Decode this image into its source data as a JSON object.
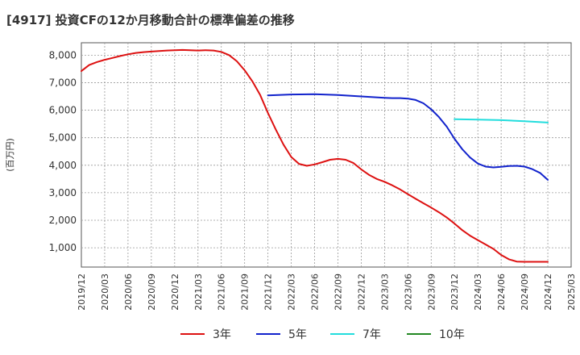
{
  "chart_data": {
    "type": "line",
    "title": "[4917]  投資CFの12か月移動合計の標準偏差の推移",
    "ylabel": "(百万円)",
    "xlabel": "",
    "ylim": [
      300,
      8450
    ],
    "xlim": [
      "2019-12",
      "2025-03"
    ],
    "y_ticks": [
      1000,
      2000,
      3000,
      4000,
      5000,
      6000,
      7000,
      8000
    ],
    "y_tick_labels": [
      "1,000",
      "2,000",
      "3,000",
      "4,000",
      "5,000",
      "6,000",
      "7,000",
      "8,000"
    ],
    "x_tick_labels": [
      "2019/12",
      "2020/03",
      "2020/06",
      "2020/09",
      "2020/12",
      "2021/03",
      "2021/06",
      "2021/09",
      "2021/12",
      "2022/03",
      "2022/06",
      "2022/09",
      "2022/12",
      "2023/03",
      "2023/06",
      "2023/09",
      "2023/12",
      "2024/03",
      "2024/06",
      "2024/09",
      "2024/12",
      "2025/03"
    ],
    "grid": true,
    "legend_position": "bottom",
    "series": [
      {
        "name": "3年",
        "color": "#dd1111",
        "x": [
          "2019-12",
          "2020-01",
          "2020-02",
          "2020-03",
          "2020-04",
          "2020-05",
          "2020-06",
          "2020-07",
          "2020-08",
          "2020-09",
          "2020-10",
          "2020-11",
          "2020-12",
          "2021-01",
          "2021-02",
          "2021-03",
          "2021-04",
          "2021-05",
          "2021-06",
          "2021-07",
          "2021-08",
          "2021-09",
          "2021-10",
          "2021-11",
          "2021-12",
          "2022-01",
          "2022-02",
          "2022-03",
          "2022-04",
          "2022-05",
          "2022-06",
          "2022-07",
          "2022-08",
          "2022-09",
          "2022-10",
          "2022-11",
          "2022-12",
          "2023-01",
          "2023-02",
          "2023-03",
          "2023-04",
          "2023-05",
          "2023-06",
          "2023-07",
          "2023-08",
          "2023-09",
          "2023-10",
          "2023-11",
          "2023-12",
          "2024-01",
          "2024-02",
          "2024-03",
          "2024-04",
          "2024-05",
          "2024-06",
          "2024-07",
          "2024-08",
          "2024-09",
          "2024-10",
          "2024-11",
          "2024-12"
        ],
        "values": [
          7420,
          7640,
          7750,
          7830,
          7900,
          7970,
          8030,
          8080,
          8110,
          8130,
          8150,
          8170,
          8180,
          8190,
          8180,
          8170,
          8180,
          8170,
          8120,
          8000,
          7780,
          7450,
          7050,
          6550,
          5900,
          5300,
          4750,
          4300,
          4050,
          3980,
          4030,
          4110,
          4200,
          4230,
          4200,
          4080,
          3850,
          3650,
          3500,
          3400,
          3270,
          3120,
          2950,
          2780,
          2620,
          2460,
          2290,
          2100,
          1880,
          1640,
          1440,
          1280,
          1120,
          960,
          740,
          580,
          500,
          490,
          490,
          490,
          490
        ]
      },
      {
        "name": "5年",
        "color": "#1122cc",
        "x": [
          "2021-12",
          "2022-03",
          "2022-06",
          "2022-09",
          "2022-12",
          "2023-03",
          "2023-04",
          "2023-05",
          "2023-06",
          "2023-07",
          "2023-08",
          "2023-09",
          "2023-10",
          "2023-11",
          "2023-12",
          "2024-01",
          "2024-02",
          "2024-03",
          "2024-04",
          "2024-05",
          "2024-06",
          "2024-07",
          "2024-08",
          "2024-09",
          "2024-10",
          "2024-11",
          "2024-12"
        ],
        "values": [
          6540,
          6570,
          6580,
          6550,
          6500,
          6450,
          6440,
          6440,
          6420,
          6370,
          6250,
          6030,
          5750,
          5400,
          4960,
          4580,
          4280,
          4060,
          3950,
          3920,
          3940,
          3970,
          3980,
          3950,
          3860,
          3720,
          3470
        ]
      },
      {
        "name": "7年",
        "color": "#22dddd",
        "x": [
          "2023-12",
          "2024-03",
          "2024-06",
          "2024-09",
          "2024-12"
        ],
        "values": [
          5670,
          5660,
          5640,
          5600,
          5550
        ]
      },
      {
        "name": "10年",
        "color": "#228822",
        "x": [],
        "values": []
      }
    ]
  }
}
